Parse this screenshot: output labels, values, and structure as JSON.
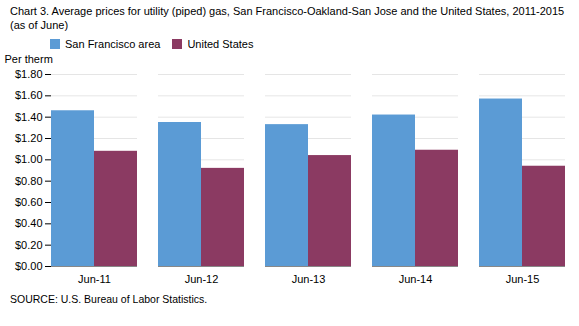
{
  "chart_data": {
    "type": "bar",
    "title": "Chart 3. Average prices for utility (piped) gas, San Francisco-Oakland-San Jose and the United States, 2011-2015  (as of June)",
    "ylabel": "Per therm",
    "source": "SOURCE: U.S. Bureau of Labor Statistics.",
    "categories": [
      "Jun-11",
      "Jun-12",
      "Jun-13",
      "Jun-14",
      "Jun-15"
    ],
    "series": [
      {
        "name": "San Francisco area",
        "color": "#5B9BD5",
        "values": [
          1.46,
          1.35,
          1.33,
          1.42,
          1.57
        ]
      },
      {
        "name": "United States",
        "color": "#8B3A62",
        "values": [
          1.08,
          0.92,
          1.04,
          1.09,
          0.94
        ]
      }
    ],
    "ylim": [
      0.0,
      1.8
    ],
    "yticks": [
      {
        "value": 0.0,
        "label": "$0.00"
      },
      {
        "value": 0.2,
        "label": "$0.20"
      },
      {
        "value": 0.4,
        "label": "$0.40"
      },
      {
        "value": 0.6,
        "label": "$0.60"
      },
      {
        "value": 0.8,
        "label": "$0.80"
      },
      {
        "value": 1.0,
        "label": "$1.00"
      },
      {
        "value": 1.2,
        "label": "$1.20"
      },
      {
        "value": 1.4,
        "label": "$1.40"
      },
      {
        "value": 1.6,
        "label": "$1.60"
      },
      {
        "value": 1.8,
        "label": "$1.80"
      }
    ],
    "grid": true,
    "legend": "upper left"
  }
}
